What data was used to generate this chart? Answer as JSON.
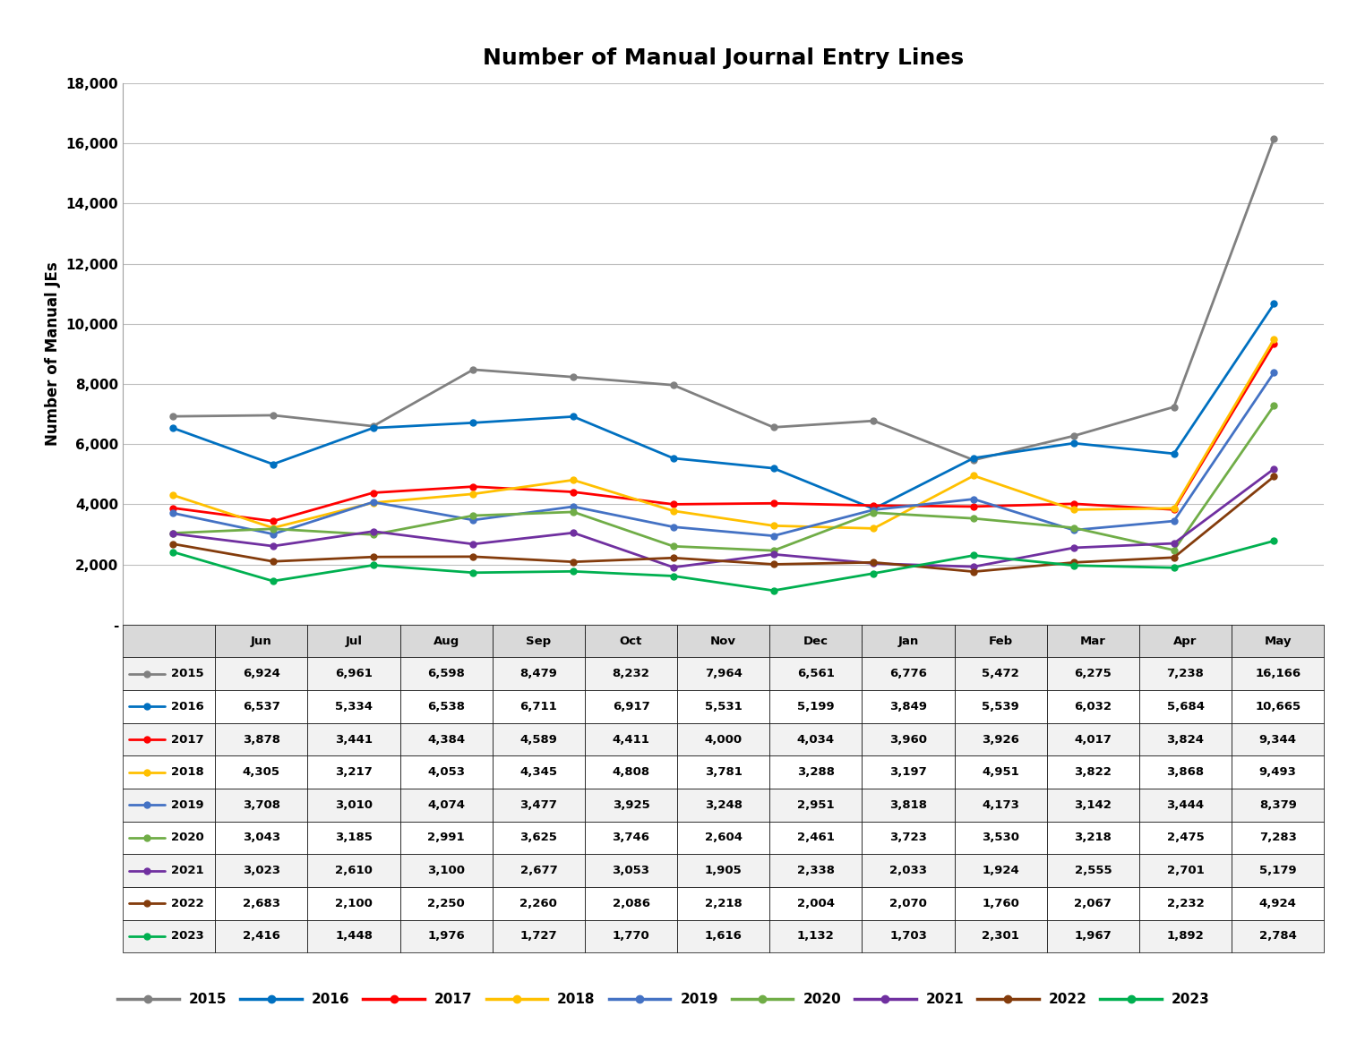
{
  "title": "Number of Manual Journal Entry Lines",
  "ylabel": "Number of Manual JEs",
  "months": [
    "Jun",
    "Jul",
    "Aug",
    "Sep",
    "Oct",
    "Nov",
    "Dec",
    "Jan",
    "Feb",
    "Mar",
    "Apr",
    "May"
  ],
  "series": {
    "2015": [
      6924,
      6961,
      6598,
      8479,
      8232,
      7964,
      6561,
      6776,
      5472,
      6275,
      7238,
      16166
    ],
    "2016": [
      6537,
      5334,
      6538,
      6711,
      6917,
      5531,
      5199,
      3849,
      5539,
      6032,
      5684,
      10665
    ],
    "2017": [
      3878,
      3441,
      4384,
      4589,
      4411,
      4000,
      4034,
      3960,
      3926,
      4017,
      3824,
      9344
    ],
    "2018": [
      4305,
      3217,
      4053,
      4345,
      4808,
      3781,
      3288,
      3197,
      4951,
      3822,
      3868,
      9493
    ],
    "2019": [
      3708,
      3010,
      4074,
      3477,
      3925,
      3248,
      2951,
      3818,
      4173,
      3142,
      3444,
      8379
    ],
    "2020": [
      3043,
      3185,
      2991,
      3625,
      3746,
      2604,
      2461,
      3723,
      3530,
      3218,
      2475,
      7283
    ],
    "2021": [
      3023,
      2610,
      3100,
      2677,
      3053,
      1905,
      2338,
      2033,
      1924,
      2555,
      2701,
      5179
    ],
    "2022": [
      2683,
      2100,
      2250,
      2260,
      2086,
      2218,
      2004,
      2070,
      1760,
      2067,
      2232,
      4924
    ],
    "2023": [
      2416,
      1448,
      1976,
      1727,
      1770,
      1616,
      1132,
      1703,
      2301,
      1967,
      1892,
      2784
    ]
  },
  "colors": {
    "2015": "#808080",
    "2016": "#0070C0",
    "2017": "#FF0000",
    "2018": "#FFC000",
    "2019": "#4472C4",
    "2020": "#70AD47",
    "2021": "#7030A0",
    "2022": "#843C0C",
    "2023": "#00B050"
  },
  "ylim": [
    0,
    18000
  ],
  "yticks": [
    0,
    2000,
    4000,
    6000,
    8000,
    10000,
    12000,
    14000,
    16000,
    18000
  ],
  "ytick_labels": [
    "-",
    "2,000",
    "4,000",
    "6,000",
    "8,000",
    "10,000",
    "12,000",
    "14,000",
    "16,000",
    "18,000"
  ],
  "background_color": "#FFFFFF",
  "grid_color": "#BFBFBF",
  "table_header_bg": "#D9D9D9",
  "title_fontsize": 18,
  "axis_label_fontsize": 12,
  "tick_fontsize": 11,
  "table_fontsize": 9.5,
  "legend_fontsize": 11
}
